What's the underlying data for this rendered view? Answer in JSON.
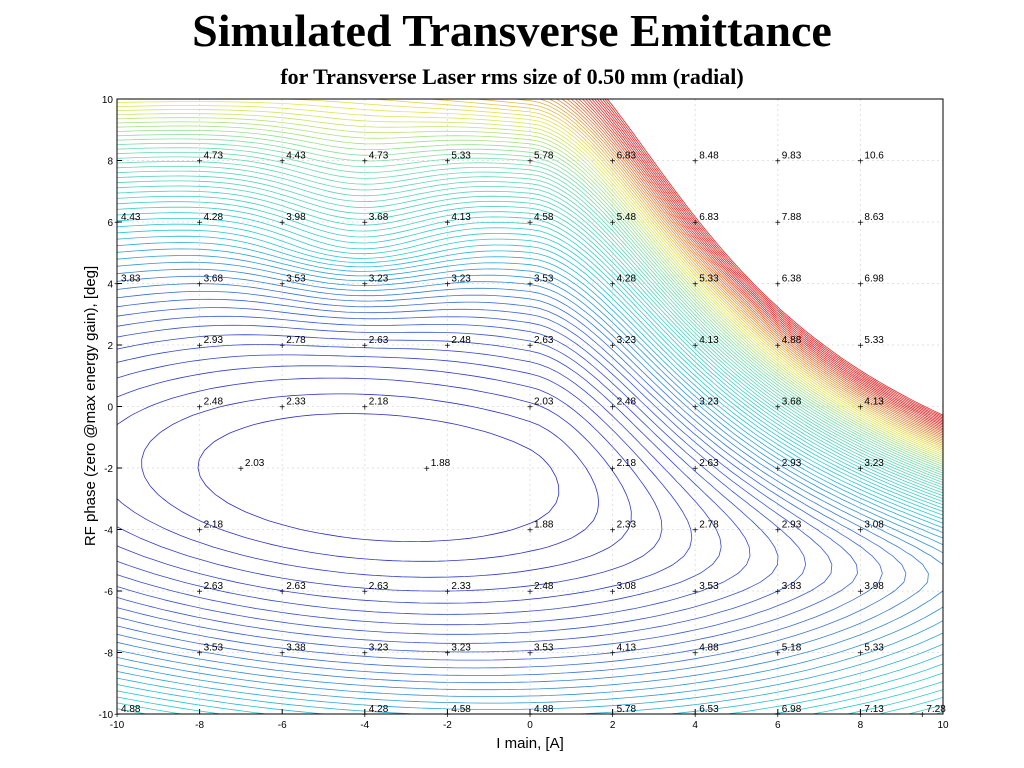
{
  "page": {
    "title": "Simulated Transverse Emittance",
    "subtitle": "for Transverse Laser rms size of 0.50 mm (radial)"
  },
  "chart_data": {
    "type": "contour",
    "title": "Simulated Transverse Emittance",
    "subtitle": "for Transverse Laser rms size of 0.50 mm (radial)",
    "xlabel": "I main, [A]",
    "ylabel": "RF phase (zero @max energy gain), [deg]",
    "xlim": [
      -10,
      10
    ],
    "ylim": [
      -10,
      10
    ],
    "x_ticks": [
      "-10",
      "-8",
      "-6",
      "-4",
      "-2",
      "0",
      "2",
      "4",
      "6",
      "8",
      "10"
    ],
    "y_ticks": [
      "-10",
      "-8",
      "-6",
      "-4",
      "-2",
      "0",
      "2",
      "4",
      "6",
      "8",
      "10"
    ],
    "grid": true,
    "colors": {
      "low": "#2e2ec8",
      "mid": "#28c8d2",
      "high_yellow": "#e6e650",
      "high_red": "#d22828"
    },
    "contour_labels": [
      {
        "x": -8,
        "y": 8,
        "text": "4.73"
      },
      {
        "x": -6,
        "y": 8,
        "text": "4.43"
      },
      {
        "x": -4,
        "y": 8,
        "text": "4.73"
      },
      {
        "x": -2,
        "y": 8,
        "text": "5.33"
      },
      {
        "x": 0,
        "y": 8,
        "text": "5.78"
      },
      {
        "x": 2,
        "y": 8,
        "text": "6.83"
      },
      {
        "x": 4,
        "y": 8,
        "text": "8.48"
      },
      {
        "x": 6,
        "y": 8,
        "text": "9.83"
      },
      {
        "x": 8,
        "y": 8,
        "text": "10.6"
      },
      {
        "x": -10,
        "y": 6,
        "text": "4.43"
      },
      {
        "x": -8,
        "y": 6,
        "text": "4.28"
      },
      {
        "x": -6,
        "y": 6,
        "text": "3.98"
      },
      {
        "x": -4,
        "y": 6,
        "text": "3.68"
      },
      {
        "x": -2,
        "y": 6,
        "text": "4.13"
      },
      {
        "x": 0,
        "y": 6,
        "text": "4.58"
      },
      {
        "x": 2,
        "y": 6,
        "text": "5.48"
      },
      {
        "x": 4,
        "y": 6,
        "text": "6.83"
      },
      {
        "x": 6,
        "y": 6,
        "text": "7.88"
      },
      {
        "x": 8,
        "y": 6,
        "text": "8.63"
      },
      {
        "x": -10,
        "y": 4,
        "text": "3.83"
      },
      {
        "x": -8,
        "y": 4,
        "text": "3.68"
      },
      {
        "x": -6,
        "y": 4,
        "text": "3.53"
      },
      {
        "x": -4,
        "y": 4,
        "text": "3.23"
      },
      {
        "x": -2,
        "y": 4,
        "text": "3.23"
      },
      {
        "x": 0,
        "y": 4,
        "text": "3.53"
      },
      {
        "x": 2,
        "y": 4,
        "text": "4.28"
      },
      {
        "x": 4,
        "y": 4,
        "text": "5.33"
      },
      {
        "x": 6,
        "y": 4,
        "text": "6.38"
      },
      {
        "x": 8,
        "y": 4,
        "text": "6.98"
      },
      {
        "x": -8,
        "y": 2,
        "text": "2.93"
      },
      {
        "x": -6,
        "y": 2,
        "text": "2.78"
      },
      {
        "x": -4,
        "y": 2,
        "text": "2.63"
      },
      {
        "x": -2,
        "y": 2,
        "text": "2.48"
      },
      {
        "x": 0,
        "y": 2,
        "text": "2.63"
      },
      {
        "x": 2,
        "y": 2,
        "text": "3.23"
      },
      {
        "x": 4,
        "y": 2,
        "text": "4.13"
      },
      {
        "x": 6,
        "y": 2,
        "text": "4.88"
      },
      {
        "x": 8,
        "y": 2,
        "text": "5.33"
      },
      {
        "x": -8,
        "y": 0,
        "text": "2.48"
      },
      {
        "x": -6,
        "y": 0,
        "text": "2.33"
      },
      {
        "x": -4,
        "y": 0,
        "text": "2.18"
      },
      {
        "x": 0,
        "y": 0,
        "text": "2.03"
      },
      {
        "x": 2,
        "y": 0,
        "text": "2.48"
      },
      {
        "x": 4,
        "y": 0,
        "text": "3.23"
      },
      {
        "x": 6,
        "y": 0,
        "text": "3.68"
      },
      {
        "x": 8,
        "y": 0,
        "text": "4.13"
      },
      {
        "x": -7,
        "y": -2,
        "text": "2.03"
      },
      {
        "x": -2.5,
        "y": -2,
        "text": "1.88"
      },
      {
        "x": 2,
        "y": -2,
        "text": "2.18"
      },
      {
        "x": 4,
        "y": -2,
        "text": "2.63"
      },
      {
        "x": 6,
        "y": -2,
        "text": "2.93"
      },
      {
        "x": 8,
        "y": -2,
        "text": "3.23"
      },
      {
        "x": -8,
        "y": -4,
        "text": "2.18"
      },
      {
        "x": 0,
        "y": -4,
        "text": "1.88"
      },
      {
        "x": 2,
        "y": -4,
        "text": "2.33"
      },
      {
        "x": 4,
        "y": -4,
        "text": "2.78"
      },
      {
        "x": 6,
        "y": -4,
        "text": "2.93"
      },
      {
        "x": 8,
        "y": -4,
        "text": "3.08"
      },
      {
        "x": -8,
        "y": -6,
        "text": "2.63"
      },
      {
        "x": -6,
        "y": -6,
        "text": "2.63"
      },
      {
        "x": -4,
        "y": -6,
        "text": "2.63"
      },
      {
        "x": -2,
        "y": -6,
        "text": "2.33"
      },
      {
        "x": 0,
        "y": -6,
        "text": "2.48"
      },
      {
        "x": 2,
        "y": -6,
        "text": "3.08"
      },
      {
        "x": 4,
        "y": -6,
        "text": "3.53"
      },
      {
        "x": 6,
        "y": -6,
        "text": "3.83"
      },
      {
        "x": 8,
        "y": -6,
        "text": "3.98"
      },
      {
        "x": -8,
        "y": -8,
        "text": "3.53"
      },
      {
        "x": -6,
        "y": -8,
        "text": "3.38"
      },
      {
        "x": -4,
        "y": -8,
        "text": "3.23"
      },
      {
        "x": -2,
        "y": -8,
        "text": "3.23"
      },
      {
        "x": 0,
        "y": -8,
        "text": "3.53"
      },
      {
        "x": 2,
        "y": -8,
        "text": "4.13"
      },
      {
        "x": 4,
        "y": -8,
        "text": "4.88"
      },
      {
        "x": 6,
        "y": -8,
        "text": "5.18"
      },
      {
        "x": 8,
        "y": -8,
        "text": "5.33"
      },
      {
        "x": -10,
        "y": -10,
        "text": "4.88"
      },
      {
        "x": -4,
        "y": -10,
        "text": "4.28"
      },
      {
        "x": -2,
        "y": -10,
        "text": "4.58"
      },
      {
        "x": 0,
        "y": -10,
        "text": "4.88"
      },
      {
        "x": 2,
        "y": -10,
        "text": "5.78"
      },
      {
        "x": 4,
        "y": -10,
        "text": "6.53"
      },
      {
        "x": 6,
        "y": -10,
        "text": "6.98"
      },
      {
        "x": 8,
        "y": -10,
        "text": "7.13"
      },
      {
        "x": 9.5,
        "y": -10,
        "text": "7.28"
      }
    ]
  }
}
